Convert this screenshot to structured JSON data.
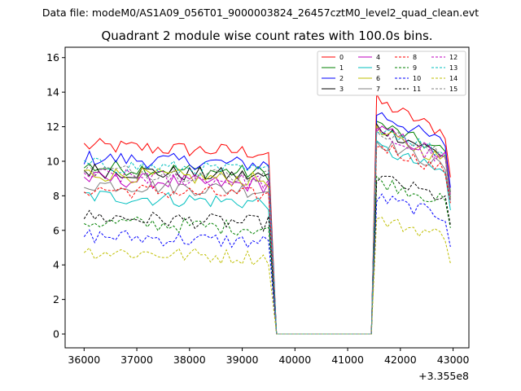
{
  "figure": {
    "suptitle": "Data file: modeM0/AS1A09_056T01_9000003824_26457cztM0_level2_quad_clean.evt"
  },
  "chart_data": {
    "type": "line",
    "title": "Quadrant 2 module wise count rates with 100.0s bins.",
    "xlabel": "",
    "ylabel": "",
    "x_offset_label": "+3.355e8",
    "xlim": [
      35640,
      43300
    ],
    "ylim": [
      -0.8,
      16.6
    ],
    "xticks": [
      36000,
      37000,
      38000,
      39000,
      40000,
      41000,
      42000,
      43000
    ],
    "yticks": [
      0,
      2,
      4,
      6,
      8,
      10,
      12,
      14,
      16
    ],
    "legend_position": "top-right",
    "x_segments": [
      {
        "from": 36000,
        "to": 39500,
        "step": 100
      },
      {
        "from": 39650,
        "to": 41450,
        "step": 100
      },
      {
        "from": 41550,
        "to": 42950,
        "step": 100
      }
    ],
    "series": [
      {
        "name": "0",
        "color": "#ff0000",
        "dash": false,
        "base": [
          10.9,
          13.5
        ]
      },
      {
        "name": "1",
        "color": "#008000",
        "dash": false,
        "base": [
          9.7,
          12.2
        ]
      },
      {
        "name": "2",
        "color": "#0000ff",
        "dash": false,
        "base": [
          10.2,
          12.8
        ]
      },
      {
        "name": "3",
        "color": "#000000",
        "dash": false,
        "base": [
          9.5,
          12.0
        ]
      },
      {
        "name": "4",
        "color": "#bf00bf",
        "dash": false,
        "base": [
          9.0,
          11.9
        ]
      },
      {
        "name": "5",
        "color": "#00bfbf",
        "dash": false,
        "base": [
          8.0,
          10.8
        ]
      },
      {
        "name": "6",
        "color": "#bfbf00",
        "dash": false,
        "base": [
          9.3,
          11.7
        ]
      },
      {
        "name": "7",
        "color": "#808080",
        "dash": false,
        "base": [
          8.7,
          11.2
        ]
      },
      {
        "name": "8",
        "color": "#ff0000",
        "dash": true,
        "base": [
          8.4,
          11.0
        ]
      },
      {
        "name": "9",
        "color": "#008000",
        "dash": true,
        "base": [
          6.5,
          8.9
        ]
      },
      {
        "name": "10",
        "color": "#0000ff",
        "dash": true,
        "base": [
          5.7,
          7.9
        ]
      },
      {
        "name": "11",
        "color": "#000000",
        "dash": true,
        "base": [
          6.8,
          9.1
        ]
      },
      {
        "name": "12",
        "color": "#bf00bf",
        "dash": true,
        "base": [
          9.2,
          11.6
        ]
      },
      {
        "name": "13",
        "color": "#00bfbf",
        "dash": true,
        "base": [
          9.8,
          12.1
        ]
      },
      {
        "name": "14",
        "color": "#bfbf00",
        "dash": true,
        "base": [
          4.8,
          6.6
        ]
      },
      {
        "name": "15",
        "color": "#808080",
        "dash": true,
        "base": [
          9.5,
          11.9
        ]
      }
    ]
  }
}
